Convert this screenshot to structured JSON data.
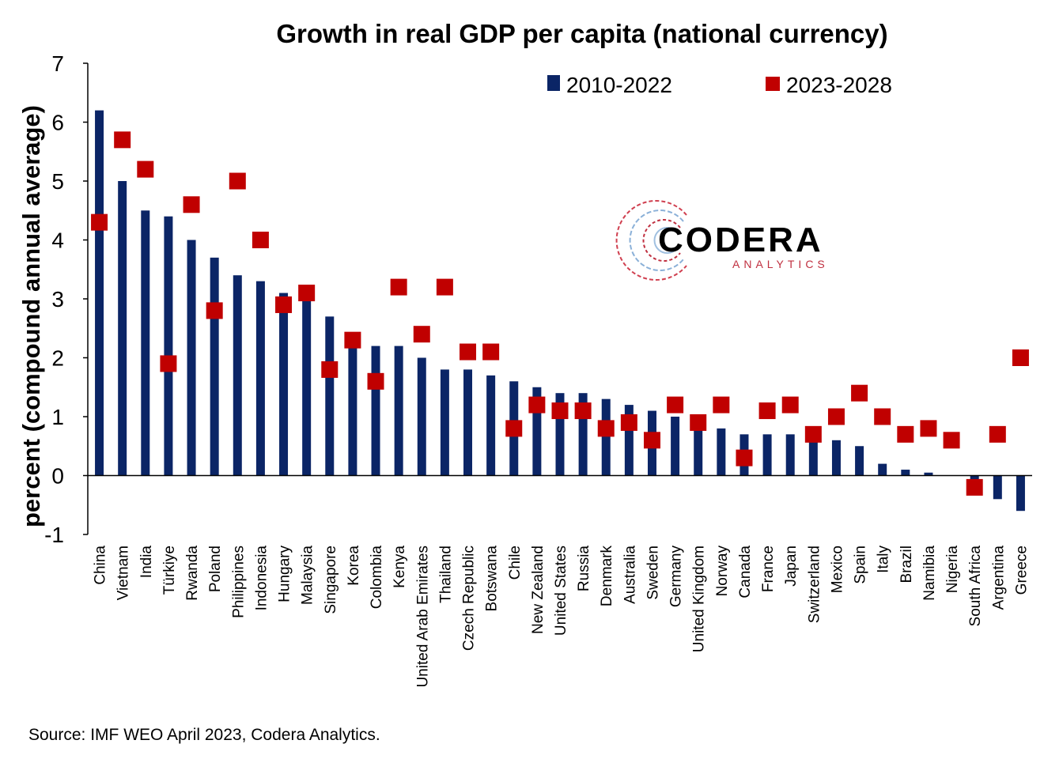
{
  "chart_data": {
    "type": "bar",
    "title": "Growth in real GDP per capita (national currency)",
    "ylabel": "percent (compound annual average)",
    "xlabel": "",
    "ylim": [
      -1,
      7
    ],
    "yticks": [
      -1,
      0,
      1,
      2,
      3,
      4,
      5,
      6,
      7
    ],
    "grid": false,
    "legend_position": "top-right",
    "categories": [
      "China",
      "Vietnam",
      "India",
      "Türkiye",
      "Rwanda",
      "Poland",
      "Philippines",
      "Indonesia",
      "Hungary",
      "Malaysia",
      "Singapore",
      "Korea",
      "Colombia",
      "Kenya",
      "United Arab Emirates",
      "Thailand",
      "Czech Republic",
      "Botswana",
      "Chile",
      "New Zealand",
      "United States",
      "Russia",
      "Denmark",
      "Australia",
      "Sweden",
      "Germany",
      "United Kingdom",
      "Norway",
      "Canada",
      "France",
      "Japan",
      "Switzerland",
      "Mexico",
      "Spain",
      "Italy",
      "Brazil",
      "Namibia",
      "Nigeria",
      "South Africa",
      "Argentina",
      "Greece"
    ],
    "series": [
      {
        "name": "2010-2022",
        "kind": "bar",
        "color": "#0b2566",
        "values": [
          6.2,
          5.0,
          4.5,
          4.4,
          4.0,
          3.7,
          3.4,
          3.3,
          3.1,
          3.0,
          2.7,
          2.3,
          2.2,
          2.2,
          2.0,
          1.8,
          1.8,
          1.7,
          1.6,
          1.5,
          1.4,
          1.4,
          1.3,
          1.2,
          1.1,
          1.0,
          0.8,
          0.8,
          0.7,
          0.7,
          0.7,
          0.6,
          0.6,
          0.5,
          0.2,
          0.1,
          0.05,
          0.0,
          -0.2,
          -0.4,
          -0.6
        ]
      },
      {
        "name": "2023-2028",
        "kind": "marker",
        "color": "#c00000",
        "values": [
          4.3,
          5.7,
          5.2,
          1.9,
          4.6,
          2.8,
          5.0,
          4.0,
          2.9,
          3.1,
          1.8,
          2.3,
          1.6,
          3.2,
          2.4,
          3.2,
          2.1,
          2.1,
          0.8,
          1.2,
          1.1,
          1.1,
          0.8,
          0.9,
          0.6,
          1.2,
          0.9,
          1.2,
          0.3,
          1.1,
          1.2,
          0.7,
          1.0,
          1.4,
          1.0,
          0.7,
          0.8,
          0.6,
          -0.2,
          0.7,
          2.0
        ]
      }
    ]
  },
  "logo": {
    "name": "CODERA",
    "sub": "ANALYTICS"
  },
  "footer": {
    "source": "Source: IMF WEO April 2023, Codera Analytics."
  }
}
